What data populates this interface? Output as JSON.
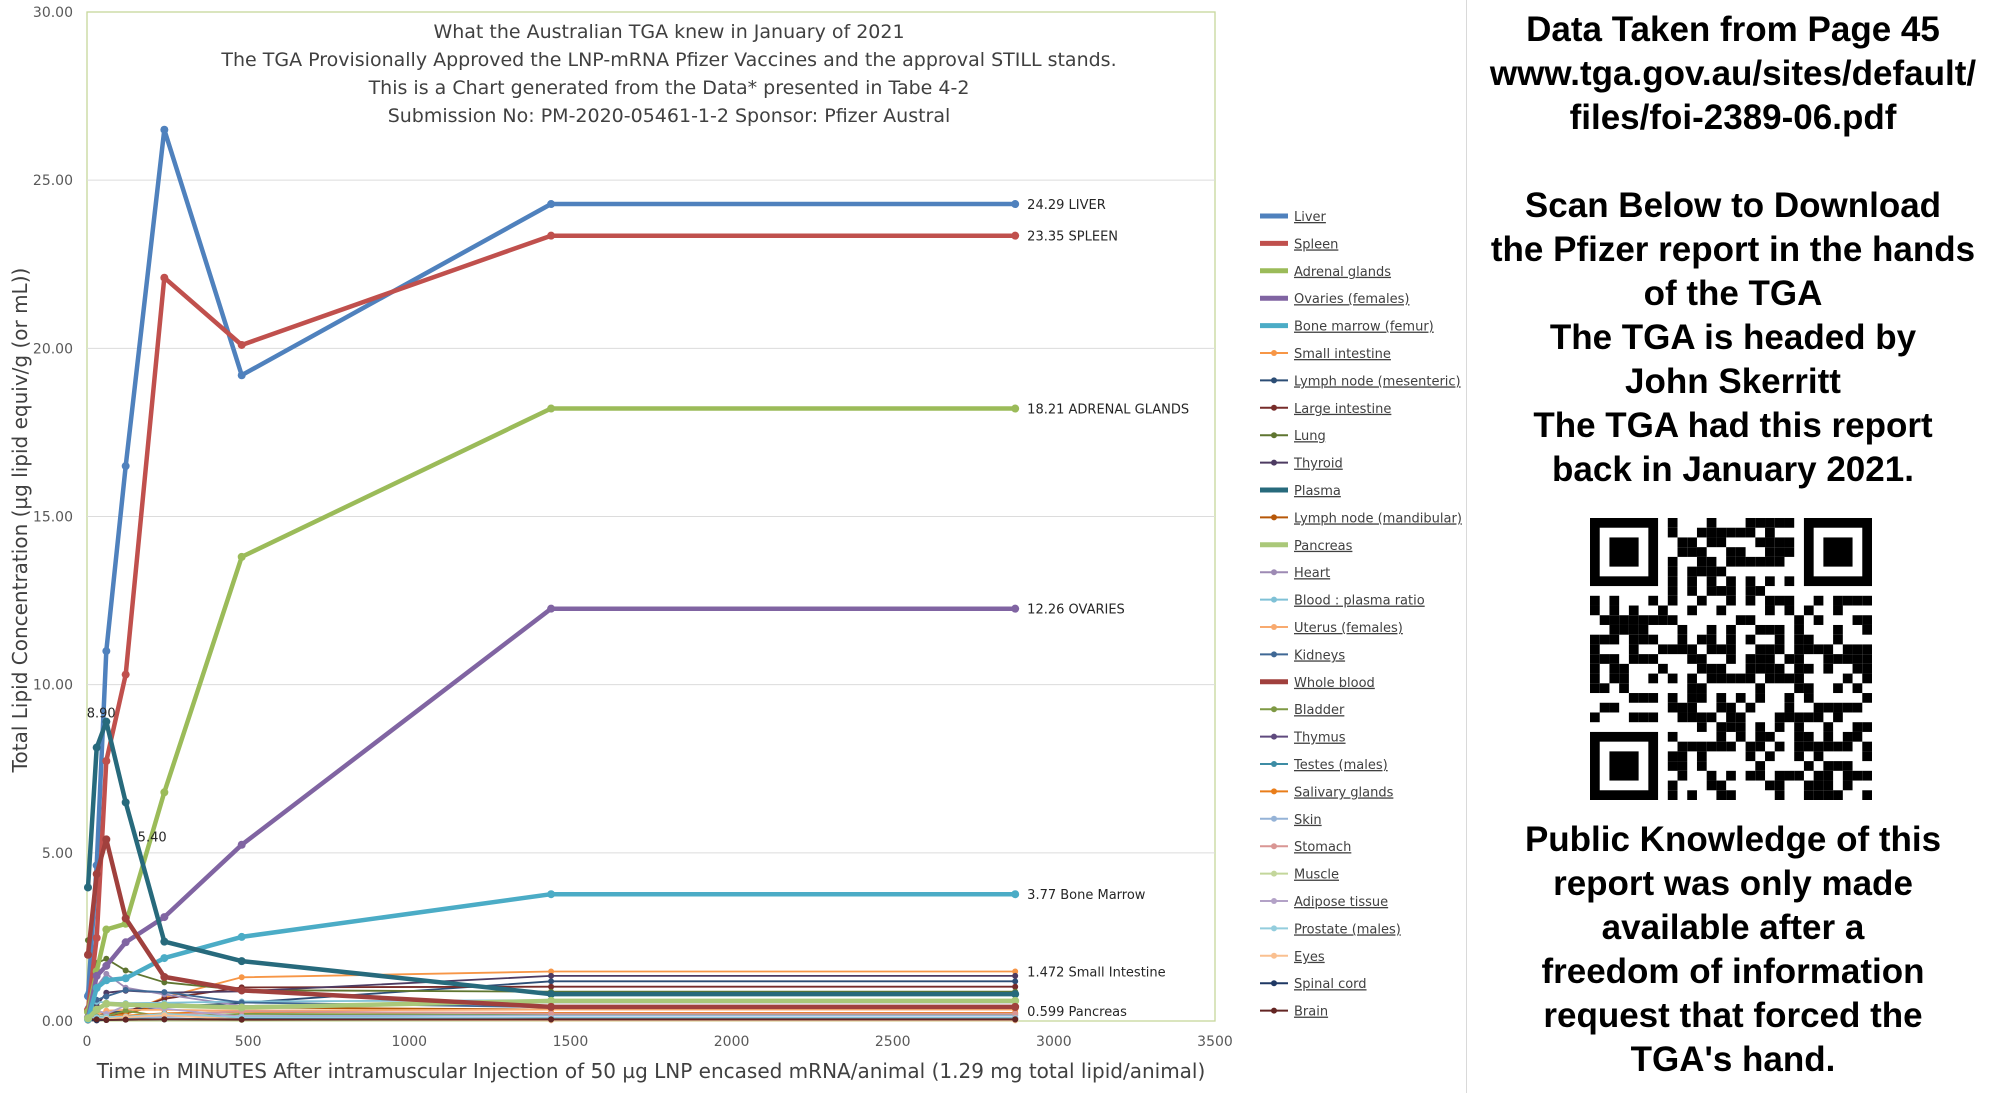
{
  "chart_data": {
    "type": "line",
    "title_lines": [
      "What the Australian TGA knew in January of 2021",
      "The TGA Provisionally Approved the LNP-mRNA Pfizer Vaccines and the approval STILL stands.",
      "This is a Chart generated from the Data* presented in Tabe 4-2",
      "Submission No: PM-2020-05461-1-2  Sponsor: Pfizer Austral"
    ],
    "xlabel": "Time in MINUTES After intramuscular Injection of 50 µg LNP encased mRNA/animal (1.29 mg total lipid/animal)",
    "ylabel": "Total Lipid Concentration (µg lipid equiv/g (or mL))",
    "xlim": [
      0,
      3500
    ],
    "ylim": [
      0,
      30
    ],
    "x_ticks": [
      "0",
      "500",
      "1000",
      "1500",
      "2000",
      "2500",
      "3000",
      "3500"
    ],
    "y_ticks": [
      "0.00",
      "5.00",
      "10.00",
      "15.00",
      "20.00",
      "25.00",
      "30.00"
    ],
    "grid": "horizontal",
    "legend_position": "right",
    "x": [
      3,
      30,
      60,
      120,
      240,
      480,
      1440,
      2880
    ],
    "series": [
      {
        "name": "Liver",
        "color": "#4f81bd",
        "width": 4.5,
        "values": [
          0.74,
          4.63,
          11.0,
          16.5,
          26.5,
          19.2,
          24.29,
          24.29
        ]
      },
      {
        "name": "Spleen",
        "color": "#c0504d",
        "width": 4.5,
        "values": [
          0.33,
          2.47,
          7.73,
          10.3,
          22.1,
          20.1,
          23.35,
          23.35
        ]
      },
      {
        "name": "Adrenal glands",
        "color": "#9bbb59",
        "width": 4.5,
        "values": [
          0.27,
          1.48,
          2.72,
          2.89,
          6.8,
          13.8,
          18.21,
          18.21
        ]
      },
      {
        "name": "Ovaries (females)",
        "color": "#8064a2",
        "width": 4.5,
        "values": [
          0.1,
          1.34,
          1.64,
          2.34,
          3.09,
          5.24,
          12.26,
          12.26
        ]
      },
      {
        "name": "Bone marrow  (femur)",
        "color": "#4bacc6",
        "width": 4.5,
        "values": [
          0.05,
          0.98,
          1.21,
          1.27,
          1.87,
          2.5,
          3.77,
          3.77
        ]
      },
      {
        "name": "Small intestine",
        "color": "#f79646",
        "width": 1.8,
        "values": [
          0.01,
          0.05,
          0.09,
          0.23,
          0.7,
          1.3,
          1.472,
          1.472
        ]
      },
      {
        "name": "Lymph  node (mesenteric)",
        "color": "#2c4d75",
        "width": 1.8,
        "values": [
          0.06,
          0.21,
          0.21,
          0.33,
          0.41,
          0.54,
          1.18,
          1.18
        ]
      },
      {
        "name": "Large intestine",
        "color": "#772c2a",
        "width": 1.8,
        "values": [
          0.01,
          0.06,
          0.14,
          0.27,
          0.66,
          1.0,
          1.02,
          1.02
        ]
      },
      {
        "name": "Lung",
        "color": "#5f7530",
        "width": 1.8,
        "values": [
          2.4,
          1.72,
          1.85,
          1.5,
          1.15,
          0.92,
          0.87,
          0.87
        ]
      },
      {
        "name": "Thyroid",
        "color": "#4d3b62",
        "width": 1.8,
        "values": [
          0.13,
          0.45,
          0.84,
          0.9,
          0.84,
          0.88,
          1.34,
          1.34
        ]
      },
      {
        "name": "Plasma",
        "color": "#276a7c",
        "width": 4.5,
        "values": [
          3.97,
          8.13,
          8.9,
          6.5,
          2.36,
          1.78,
          0.8,
          0.8
        ]
      },
      {
        "name": "Lymph  node (mandibular)",
        "color": "#b65708",
        "width": 1.8,
        "values": [
          0.06,
          0.21,
          0.23,
          0.22,
          0.51,
          0.4,
          0.34,
          0.34
        ]
      },
      {
        "name": "Pancreas",
        "color": "#aac879",
        "width": 4.5,
        "values": [
          0.08,
          0.34,
          0.51,
          0.48,
          0.46,
          0.4,
          0.599,
          0.599
        ]
      },
      {
        "name": "Heart",
        "color": "#9d8ab4",
        "width": 1.8,
        "values": [
          0.28,
          1.03,
          1.4,
          0.99,
          0.79,
          0.45,
          0.55,
          0.55
        ]
      },
      {
        "name": "Blood : plasma ratio",
        "color": "#7fc1d6",
        "width": 1.8,
        "values": [
          0.82,
          0.57,
          0.55,
          0.53,
          0.54,
          0.58,
          0.62,
          0.62
        ]
      },
      {
        "name": "Uterus (females)",
        "color": "#f8aa6f",
        "width": 1.8,
        "values": [
          0.04,
          0.18,
          0.31,
          0.33,
          0.33,
          0.31,
          0.34,
          0.34
        ]
      },
      {
        "name": "Kidneys",
        "color": "#3f6895",
        "width": 1.8,
        "values": [
          0.39,
          0.63,
          0.73,
          0.92,
          0.86,
          0.55,
          0.41,
          0.41
        ]
      },
      {
        "name": "Whole blood",
        "color": "#a0403d",
        "width": 4.5,
        "values": [
          1.97,
          4.37,
          5.4,
          3.05,
          1.31,
          0.91,
          0.42,
          0.42
        ]
      },
      {
        "name": "Bladder",
        "color": "#7e9944",
        "width": 1.8,
        "values": [
          0.04,
          0.13,
          0.14,
          0.3,
          0.13,
          0.21,
          0.18,
          0.18
        ]
      },
      {
        "name": "Thymus",
        "color": "#5f4a7e",
        "width": 1.8,
        "values": [
          0.09,
          0.09,
          0.09,
          0.14,
          0.2,
          0.08,
          0.07,
          0.07
        ]
      },
      {
        "name": "Testes (males)",
        "color": "#3d8ca4",
        "width": 1.8,
        "values": [
          0.03,
          0.05,
          0.06,
          0.07,
          0.05,
          0.08,
          0.09,
          0.09
        ]
      },
      {
        "name": "Salivary glands",
        "color": "#e97d1a",
        "width": 1.8,
        "values": [
          0.08,
          0.09,
          0.1,
          0.16,
          0.23,
          0.27,
          0.24,
          0.24
        ]
      },
      {
        "name": "Skin",
        "color": "#95b3d7",
        "width": 1.8,
        "values": [
          0.01,
          0.04,
          0.07,
          0.11,
          0.12,
          0.15,
          0.16,
          0.16
        ]
      },
      {
        "name": "Stomach",
        "color": "#d99694",
        "width": 1.8,
        "values": [
          0.01,
          0.02,
          0.06,
          0.13,
          0.17,
          0.29,
          0.22,
          0.22
        ]
      },
      {
        "name": "Muscle",
        "color": "#c3d69b",
        "width": 1.8,
        "values": [
          0.05,
          0.04,
          0.05,
          0.04,
          0.05,
          0.03,
          0.05,
          0.05
        ]
      },
      {
        "name": "Adipose tissue",
        "color": "#b3a2c7",
        "width": 1.8,
        "values": [
          0.06,
          0.32,
          0.21,
          0.46,
          0.37,
          0.13,
          0.07,
          0.07
        ]
      },
      {
        "name": "Prostate (males)",
        "color": "#93cddd",
        "width": 1.8,
        "values": [
          0.06,
          0.11,
          0.12,
          0.13,
          0.21,
          0.11,
          0.08,
          0.08
        ]
      },
      {
        "name": "Eyes",
        "color": "#fac090",
        "width": 1.8,
        "values": [
          0.01,
          0.04,
          0.06,
          0.11,
          0.17,
          0.05,
          0.02,
          0.02
        ]
      },
      {
        "name": "Spinal cord",
        "color": "#1f3864",
        "width": 1.8,
        "values": [
          0.02,
          0.02,
          0.03,
          0.04,
          0.05,
          0.05,
          0.05,
          0.05
        ]
      },
      {
        "name": "Brain",
        "color": "#632523",
        "width": 1.8,
        "values": [
          0.05,
          0.05,
          0.03,
          0.04,
          0.05,
          0.04,
          0.05,
          0.05
        ]
      }
    ],
    "annotations": [
      {
        "text": "24.29 LIVER",
        "x": 2880,
        "y": 24.29,
        "side": "right"
      },
      {
        "text": "23.35  SPLEEN",
        "x": 2880,
        "y": 23.35,
        "side": "right"
      },
      {
        "text": "18.21  ADRENAL GLANDS",
        "x": 2880,
        "y": 18.21,
        "side": "right"
      },
      {
        "text": "12.26  OVARIES",
        "x": 2880,
        "y": 12.26,
        "side": "right"
      },
      {
        "text": "3.77  Bone Marrow",
        "x": 2880,
        "y": 3.77,
        "side": "right"
      },
      {
        "text": "1.472  Small Intestine",
        "x": 2880,
        "y": 1.472,
        "side": "right"
      },
      {
        "text": "0.599 Pancreas",
        "x": 2880,
        "y": 0.599,
        "side": "right-below"
      },
      {
        "text": "8.90",
        "x": 120,
        "y": 8.9,
        "side": "left"
      },
      {
        "text": "5.40",
        "x": 120,
        "y": 5.4,
        "side": "right"
      }
    ]
  },
  "right_panel": {
    "block1": [
      "Data Taken from Page 45",
      "www.tga.gov.au/sites/default/",
      "files/foi-2389-06.pdf"
    ],
    "block2": [
      "Scan Below to Download",
      "the Pfizer report in the hands",
      "of the TGA",
      "The TGA is headed by",
      "John Skerritt",
      "The TGA had this report",
      " back in January 2021."
    ],
    "block3": [
      "Public Knowledge of this",
      "report was only made",
      "available after a",
      "freedom of information",
      "request that forced the",
      "TGA's hand."
    ]
  }
}
